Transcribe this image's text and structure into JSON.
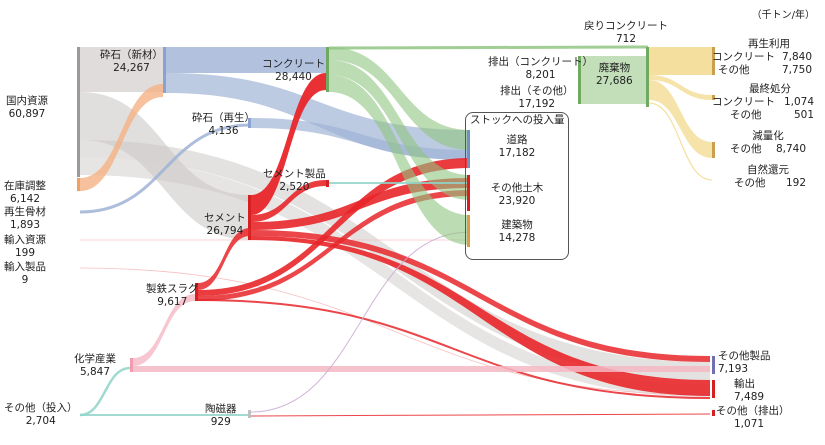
{
  "unit": "（千トン/年）",
  "nodes": {
    "domestic": {
      "name": "国内資源",
      "value": "60,897"
    },
    "stock_adj": {
      "name": "在庫調整",
      "value": "6,142"
    },
    "recycled_agg": {
      "name": "再生骨材",
      "value": "1,893"
    },
    "imported_res": {
      "name": "輸入資源",
      "value": "199"
    },
    "imported_prod": {
      "name": "輸入製品",
      "value": "9"
    },
    "chemical": {
      "name": "化学産業",
      "value": "5,847"
    },
    "other_input": {
      "name": "その他（投入）",
      "value": "2,704"
    },
    "crushed_new": {
      "name": "砕石（新材）",
      "value": "24,267"
    },
    "crushed_rec": {
      "name": "砕石（再生）",
      "value": "4,136"
    },
    "cement": {
      "name": "セメント",
      "value": "26,794"
    },
    "slag": {
      "name": "製鉄スラグ",
      "value": "9,617"
    },
    "ceramics": {
      "name": "陶磁器",
      "value": "929"
    },
    "concrete": {
      "name": "コンクリート",
      "value": "28,440"
    },
    "cement_prod": {
      "name": "セメント製品",
      "value": "2,520"
    },
    "stock_title": "ストックへの投入量",
    "road": {
      "name": "道路",
      "value": "17,182"
    },
    "civil": {
      "name": "その他土木",
      "value": "23,920"
    },
    "building": {
      "name": "建築物",
      "value": "14,278"
    },
    "emit_conc": {
      "name": "排出（コンクリート）",
      "value": "8,201"
    },
    "emit_other": {
      "name": "排出（その他）",
      "value": "17,192"
    },
    "return_conc": {
      "name": "戻りコンクリート",
      "value": "712"
    },
    "waste": {
      "name": "廃棄物",
      "value": "27,686"
    },
    "reuse": {
      "name": "再生利用",
      "conc_label": "コンクリート",
      "conc_value": "7,840",
      "other_label": "その他",
      "other_value": "7,750"
    },
    "landfill": {
      "name": "最終処分",
      "conc_label": "コンクリート",
      "conc_value": "1,074",
      "other_label": "その他",
      "other_value": "501"
    },
    "reduce": {
      "name": "減量化",
      "other_label": "その他",
      "other_value": "8,740"
    },
    "natural": {
      "name": "自然還元",
      "other_label": "その他",
      "other_value": "192"
    },
    "other_prod": {
      "name": "その他製品",
      "value": "7,193"
    },
    "export": {
      "name": "輸出",
      "value": "7,489"
    },
    "other_emit": {
      "name": "その他（排出）",
      "value": "1,071"
    }
  },
  "colors": {
    "gray": "#c9c5c3",
    "orange": "#f4b183",
    "blue": "#9fb3d6",
    "red": "#e8262a",
    "green": "#8fc581",
    "yellow": "#f2d98d",
    "pink": "#f5b8c4",
    "teal": "#8fd3c8",
    "purple": "#c9a8d0"
  }
}
